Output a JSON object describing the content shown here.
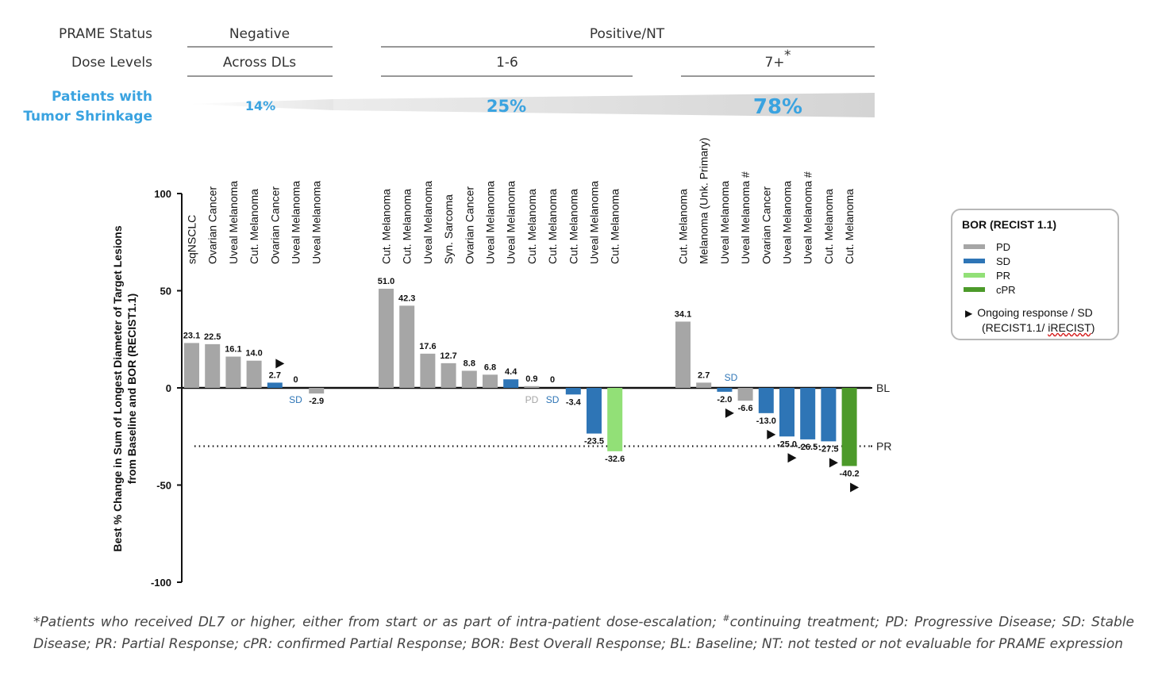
{
  "header": {
    "prame_label": "PRAME Status",
    "dose_label": "Dose Levels",
    "shrink_label_1": "Patients with",
    "shrink_label_2": "Tumor Shrinkage",
    "negative": "Negative",
    "positive": "Positive/NT",
    "dl_neg": "Across DLs",
    "dl_pos1": "1-6",
    "dl_pos2": "7+",
    "dl_pos2_sup": "*",
    "pct_neg": "14%",
    "pct_pos1": "25%",
    "pct_pos2": "78%"
  },
  "colors": {
    "PD": "#a6a6a6",
    "SD": "#2e75b6",
    "PR": "#92e077",
    "cPR": "#4c9a2a",
    "shrink": "#3aa3e0"
  },
  "chart_data": {
    "type": "bar",
    "ylabel_1": "Best % Change in Sum of Longest Diameter of Target Lesions",
    "ylabel_2": "from Baseline and BOR (RECIST1.1)",
    "ylim": [
      -100,
      100
    ],
    "yticks": [
      100,
      50,
      0,
      -50,
      -100
    ],
    "ytick_labels": [
      "100",
      "50",
      "0",
      "-50",
      "-100"
    ],
    "reference_lines": [
      {
        "label": "BL",
        "value": 0,
        "style": "solid"
      },
      {
        "label": "PR",
        "value": -30,
        "style": "dotted"
      }
    ],
    "groups": [
      {
        "name": "Negative",
        "bars": [
          {
            "category": "sqNSCLC",
            "value": 23.1,
            "label": "23.1",
            "bor": "PD"
          },
          {
            "category": "Ovarian Cancer",
            "value": 22.5,
            "label": "22.5",
            "bor": "PD"
          },
          {
            "category": "Uveal Melanoma",
            "value": 16.1,
            "label": "16.1",
            "bor": "PD"
          },
          {
            "category": "Cut. Melanoma",
            "value": 14.0,
            "label": "14.0",
            "bor": "PD"
          },
          {
            "category": "Ovarian Cancer",
            "value": 2.7,
            "label": "2.7",
            "bor": "SD",
            "ongoing": true
          },
          {
            "category": "Uveal Melanoma",
            "value": 0,
            "label": "0",
            "bor": "SD",
            "bor_label": "SD"
          },
          {
            "category": "Uveal Melanoma",
            "value": -2.9,
            "label": "-2.9",
            "bor": "PD"
          }
        ]
      },
      {
        "name": "Positive/NT 1-6",
        "bars": [
          {
            "category": "Cut. Melanoma",
            "value": 51.0,
            "label": "51.0",
            "bor": "PD"
          },
          {
            "category": "Cut. Melanoma",
            "value": 42.3,
            "label": "42.3",
            "bor": "PD"
          },
          {
            "category": "Uveal Melanoma",
            "value": 17.6,
            "label": "17.6",
            "bor": "PD"
          },
          {
            "category": "Syn. Sarcoma",
            "value": 12.7,
            "label": "12.7",
            "bor": "PD"
          },
          {
            "category": "Ovarian Cancer",
            "value": 8.8,
            "label": "8.8",
            "bor": "PD"
          },
          {
            "category": "Uveal Melanoma",
            "value": 6.8,
            "label": "6.8",
            "bor": "PD"
          },
          {
            "category": "Uveal Melanoma",
            "value": 4.4,
            "label": "4.4",
            "bor": "SD"
          },
          {
            "category": "Cut. Melanoma",
            "value": 0.9,
            "label": "0.9",
            "bor": "PD",
            "bor_label": "PD"
          },
          {
            "category": "Cut. Melanoma",
            "value": 0,
            "label": "0",
            "bor": "SD",
            "bor_label": "SD"
          },
          {
            "category": "Cut. Melanoma",
            "value": -3.4,
            "label": "-3.4",
            "bor": "SD"
          },
          {
            "category": "Uveal Melanoma",
            "value": -23.5,
            "label": "-23.5",
            "bor": "SD"
          },
          {
            "category": "Cut. Melanoma",
            "value": -32.6,
            "label": "-32.6",
            "bor": "PR"
          }
        ]
      },
      {
        "name": "Positive/NT 7+",
        "bars": [
          {
            "category": "Cut. Melanoma",
            "value": 34.1,
            "label": "34.1",
            "bor": "PD"
          },
          {
            "category": "Melanoma (Unk. Primary)",
            "value": 2.7,
            "label": "2.7",
            "bor": "PD"
          },
          {
            "category": "Uveal Melanoma",
            "value": -2.0,
            "label": "-2.0",
            "bor": "SD",
            "bor_label": "SD",
            "ongoing": true
          },
          {
            "category": "Uveal Melanoma #",
            "value": -6.6,
            "label": "-6.6",
            "bor": "PD"
          },
          {
            "category": "Ovarian Cancer",
            "value": -13.0,
            "label": "-13.0",
            "bor": "SD",
            "ongoing": true
          },
          {
            "category": "Uveal Melanoma",
            "value": -25.0,
            "label": "-25.0",
            "bor": "SD",
            "ongoing": true
          },
          {
            "category": "Uveal Melanoma #",
            "value": -26.5,
            "label": "-26.5",
            "bor": "SD"
          },
          {
            "category": "Cut. Melanoma",
            "value": -27.5,
            "label": "-27.5",
            "bor": "SD",
            "ongoing": true
          },
          {
            "category": "Cut. Melanoma",
            "value": -40.2,
            "label": "-40.2",
            "bor": "cPR",
            "ongoing": true
          }
        ]
      }
    ]
  },
  "legend": {
    "title": "BOR (RECIST 1.1)",
    "items": [
      {
        "label": "PD",
        "color": "#a6a6a6"
      },
      {
        "label": "SD",
        "color": "#2e75b6"
      },
      {
        "label": "PR",
        "color": "#92e077"
      },
      {
        "label": "cPR",
        "color": "#4c9a2a"
      }
    ],
    "ongoing_line1": "Ongoing response / SD",
    "ongoing_line2a": "(RECIST1.1/ ",
    "ongoing_line2b": "iRECIST",
    "ongoing_line2c": ")"
  },
  "footnote": {
    "part1": "*Patients who received DL7 or higher, either from start or as part of intra-patient dose-escalation; ",
    "sup": "#",
    "part2": "continuing treatment; PD: Progressive Disease; SD: Stable Disease; PR: Partial Response; cPR: confirmed Partial Response; BOR: Best Overall Response; BL: Baseline; NT: not tested or not evaluable for PRAME expression"
  }
}
